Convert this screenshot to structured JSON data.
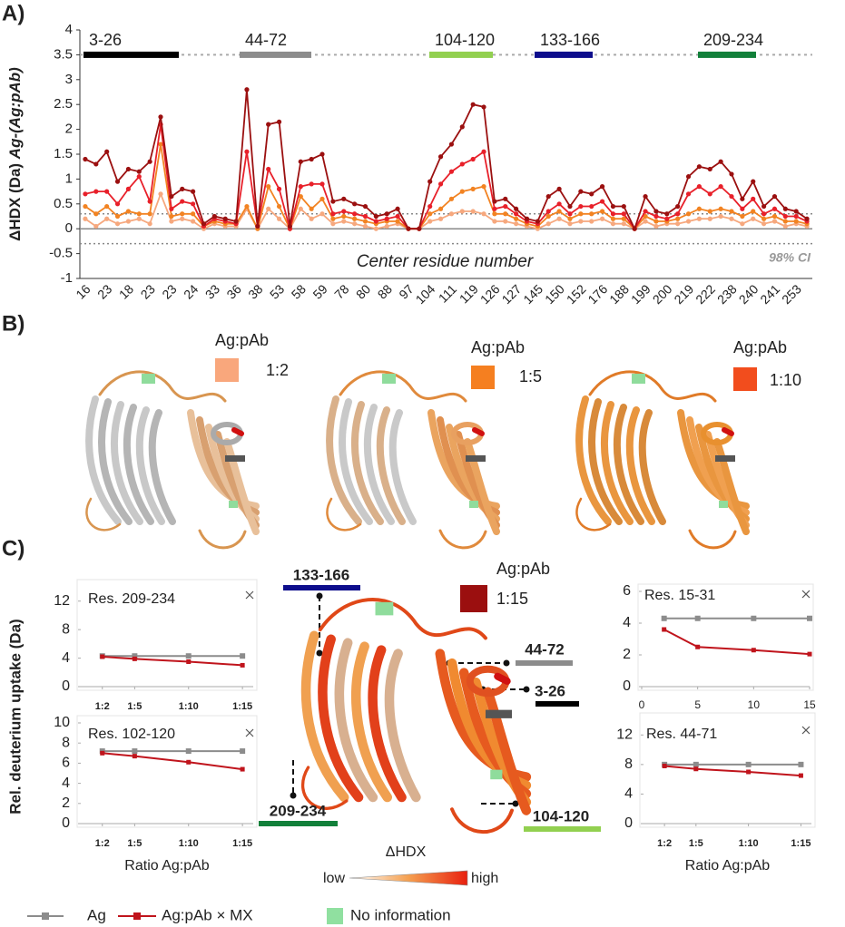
{
  "panel_labels": [
    "A)",
    "B)",
    "C)"
  ],
  "chart_data": [
    {
      "type": "line",
      "ylabel": "ΔHDX (Da) ",
      "ylabel_italic": "Ag-(Ag:pAb)",
      "xlabel": "Center residue number",
      "categories": [
        "16",
        null,
        "23",
        null,
        "18",
        null,
        "23",
        null,
        "23",
        null,
        "24",
        null,
        "33",
        null,
        "36",
        null,
        "38",
        null,
        "53",
        null,
        "58",
        null,
        "59",
        null,
        "78",
        null,
        "80",
        null,
        "88",
        null,
        "97",
        null,
        "104",
        null,
        "111",
        null,
        "119",
        null,
        "126",
        null,
        "127",
        null,
        "145",
        null,
        "150",
        null,
        "152",
        null,
        "176",
        null,
        "188",
        null,
        "199",
        null,
        "200",
        null,
        "219",
        null,
        "222",
        null,
        "238",
        null,
        "240",
        null,
        "241",
        null,
        "253",
        null
      ],
      "series": [
        {
          "color": "#f6a87e",
          "values": [
            0.2,
            0.05,
            0.2,
            0.1,
            0.15,
            0.2,
            0.1,
            0.7,
            0.15,
            0.2,
            0.15,
            0,
            0.1,
            0.05,
            0.05,
            0.4,
            0,
            0.4,
            0.2,
            0,
            0.4,
            0.2,
            0.3,
            0.1,
            0.15,
            0.1,
            0.05,
            0,
            0.05,
            0.1,
            0,
            0,
            0.15,
            0.2,
            0.3,
            0.35,
            0.35,
            0.3,
            0.15,
            0.15,
            0.1,
            0.05,
            0,
            0.1,
            0.2,
            0.1,
            0.15,
            0.15,
            0.2,
            0.1,
            0.1,
            0,
            0.15,
            0.05,
            0.1,
            0.1,
            0.15,
            0.2,
            0.2,
            0.25,
            0.2,
            0.1,
            0.2,
            0.1,
            0.15,
            0.05,
            0.1,
            0.05
          ]
        },
        {
          "color": "#f28322",
          "values": [
            0.45,
            0.3,
            0.45,
            0.25,
            0.35,
            0.3,
            0.3,
            1.7,
            0.25,
            0.3,
            0.3,
            0.05,
            0.15,
            0.1,
            0.1,
            0.45,
            0,
            0.85,
            0.45,
            0,
            0.65,
            0.4,
            0.6,
            0.2,
            0.25,
            0.2,
            0.15,
            0.1,
            0.15,
            0.15,
            0,
            0,
            0.3,
            0.4,
            0.6,
            0.75,
            0.8,
            0.85,
            0.3,
            0.3,
            0.2,
            0.1,
            0.05,
            0.25,
            0.35,
            0.2,
            0.3,
            0.3,
            0.35,
            0.2,
            0.2,
            0,
            0.25,
            0.15,
            0.15,
            0.2,
            0.3,
            0.4,
            0.35,
            0.4,
            0.35,
            0.25,
            0.35,
            0.2,
            0.25,
            0.15,
            0.15,
            0.1
          ]
        },
        {
          "color": "#e8202a",
          "values": [
            0.7,
            0.75,
            0.75,
            0.5,
            0.8,
            1.05,
            0.55,
            2.1,
            0.4,
            0.55,
            0.5,
            0.05,
            0.2,
            0.15,
            0.1,
            1.55,
            0.05,
            1.2,
            0.8,
            0,
            0.85,
            0.9,
            0.9,
            0.3,
            0.35,
            0.3,
            0.25,
            0.15,
            0.2,
            0.25,
            0,
            0,
            0.45,
            0.9,
            1.15,
            1.3,
            1.4,
            1.55,
            0.4,
            0.45,
            0.3,
            0.15,
            0.1,
            0.35,
            0.5,
            0.3,
            0.45,
            0.45,
            0.55,
            0.3,
            0.3,
            0,
            0.35,
            0.25,
            0.2,
            0.3,
            0.7,
            0.85,
            0.7,
            0.85,
            0.65,
            0.4,
            0.6,
            0.3,
            0.4,
            0.25,
            0.25,
            0.15
          ]
        },
        {
          "color": "#9b1010",
          "values": [
            1.4,
            1.3,
            1.55,
            0.95,
            1.2,
            1.15,
            1.35,
            2.25,
            0.65,
            0.8,
            0.75,
            0.1,
            0.25,
            0.2,
            0.15,
            2.8,
            0.05,
            2.1,
            2.15,
            0.05,
            1.35,
            1.4,
            1.5,
            0.55,
            0.6,
            0.5,
            0.45,
            0.25,
            0.3,
            0.4,
            0,
            0,
            0.95,
            1.45,
            1.7,
            2.05,
            2.5,
            2.45,
            0.55,
            0.6,
            0.4,
            0.2,
            0.15,
            0.65,
            0.8,
            0.45,
            0.75,
            0.7,
            0.85,
            0.45,
            0.45,
            0,
            0.65,
            0.35,
            0.3,
            0.45,
            1.05,
            1.25,
            1.2,
            1.35,
            1.1,
            0.6,
            0.95,
            0.45,
            0.65,
            0.4,
            0.35,
            0.2
          ]
        }
      ],
      "ylim": [
        -1,
        4
      ],
      "yticks": [
        4,
        3.5,
        3,
        2.5,
        2,
        1.5,
        1,
        0.5,
        0,
        -0.5,
        -1
      ],
      "reference_lines": [
        0.3,
        -0.3
      ],
      "reference_label": "98% CI",
      "region_level": 3.5,
      "regions": [
        {
          "label": "3-26",
          "color": "#000000"
        },
        {
          "label": "44-72",
          "color": "#8c8c8c"
        },
        {
          "label": "104-120",
          "color": "#92d050"
        },
        {
          "label": "133-166",
          "color": "#0d0d8c"
        },
        {
          "label": "209-234",
          "color": "#12803a"
        }
      ]
    },
    {
      "type": "line",
      "title": "Res. 209-234",
      "x": [
        2,
        5,
        10,
        15
      ],
      "xlim": [
        0,
        16
      ],
      "xticks": [
        {
          "value": 2,
          "label": "1:2"
        },
        {
          "value": 5,
          "label": "1:5"
        },
        {
          "value": 10,
          "label": "1:10"
        },
        {
          "value": 15,
          "label": "1:15"
        }
      ],
      "ylim": [
        0,
        14
      ],
      "yticks": [
        0,
        4,
        8,
        12
      ],
      "series": [
        {
          "color": "#8c8c8c",
          "values": [
            4.3,
            4.3,
            4.3,
            4.3
          ]
        },
        {
          "color": "#c0141c",
          "values": [
            4.2,
            3.9,
            3.5,
            3.0
          ]
        }
      ]
    },
    {
      "type": "line",
      "title": "Res. 102-120",
      "x": [
        2,
        5,
        10,
        15
      ],
      "xlim": [
        0,
        16
      ],
      "xticks": [
        {
          "value": 2,
          "label": "1:2"
        },
        {
          "value": 5,
          "label": "1:5"
        },
        {
          "value": 10,
          "label": "1:10"
        },
        {
          "value": 15,
          "label": "1:15"
        }
      ],
      "ylim": [
        0,
        10
      ],
      "yticks": [
        0,
        2,
        4,
        6,
        8,
        10
      ],
      "xlabel": "Ratio Ag:pAb",
      "series": [
        {
          "color": "#8c8c8c",
          "values": [
            7.2,
            7.2,
            7.2,
            7.2
          ]
        },
        {
          "color": "#c0141c",
          "values": [
            7.0,
            6.7,
            6.1,
            5.4
          ]
        }
      ]
    },
    {
      "type": "line",
      "title": "Res. 15-31",
      "x": [
        2,
        5,
        10,
        15
      ],
      "xlim": [
        0,
        15
      ],
      "xticks": [
        0,
        5,
        10,
        15
      ],
      "ylim": [
        0,
        6
      ],
      "yticks": [
        0,
        2,
        4,
        6
      ],
      "series": [
        {
          "color": "#8c8c8c",
          "values": [
            4.3,
            4.3,
            4.3,
            4.3
          ]
        },
        {
          "color": "#c0141c",
          "values": [
            3.6,
            2.5,
            2.3,
            2.05
          ]
        }
      ]
    },
    {
      "type": "line",
      "title": "Res. 44-71",
      "x": [
        2,
        5,
        10,
        15
      ],
      "xlim": [
        0,
        16
      ],
      "xticks": [
        {
          "value": 2,
          "label": "1:2"
        },
        {
          "value": 5,
          "label": "1:5"
        },
        {
          "value": 10,
          "label": "1:10"
        },
        {
          "value": 15,
          "label": "1:15"
        }
      ],
      "ylim": [
        0,
        14
      ],
      "yticks": [
        0,
        4,
        8,
        12
      ],
      "xlabel": "Ratio Ag:pAb",
      "series": [
        {
          "color": "#8c8c8c",
          "values": [
            8.0,
            8.0,
            8.0,
            8.0
          ]
        },
        {
          "color": "#c0141c",
          "values": [
            7.8,
            7.4,
            7.0,
            6.5
          ]
        }
      ]
    }
  ],
  "panel_b": {
    "legends": [
      {
        "title": "Ag:pAb",
        "ratio": "1:2",
        "color": "#f9a77c"
      },
      {
        "title": "Ag:pAb",
        "ratio": "1:5",
        "color": "#f57f20"
      },
      {
        "title": "Ag:pAb",
        "ratio": "1:10",
        "color": "#f24d1d"
      }
    ]
  },
  "panel_c": {
    "ylabel": "Rel. deuterium uptake (Da)",
    "structure": {
      "title": "Ag:pAb",
      "ratio": "1:15",
      "color": "#9b0f0f",
      "scale_title": "ΔHDX",
      "low": "low",
      "high": "high"
    },
    "regions": [
      {
        "label": "133-166",
        "color": "#0d0d8c"
      },
      {
        "label": "44-72",
        "color": "#8c8c8c"
      },
      {
        "label": "3-26",
        "color": "#000000"
      },
      {
        "label": "209-234",
        "color": "#12803a"
      },
      {
        "label": "104-120",
        "color": "#92d050"
      }
    ],
    "legend": [
      {
        "name": "Ag",
        "color": "#8c8c8c"
      },
      {
        "name": "Ag:pAb × MX",
        "color": "#c0141c"
      }
    ],
    "no_info": {
      "label": "No information",
      "color": "#90e0a0"
    }
  }
}
